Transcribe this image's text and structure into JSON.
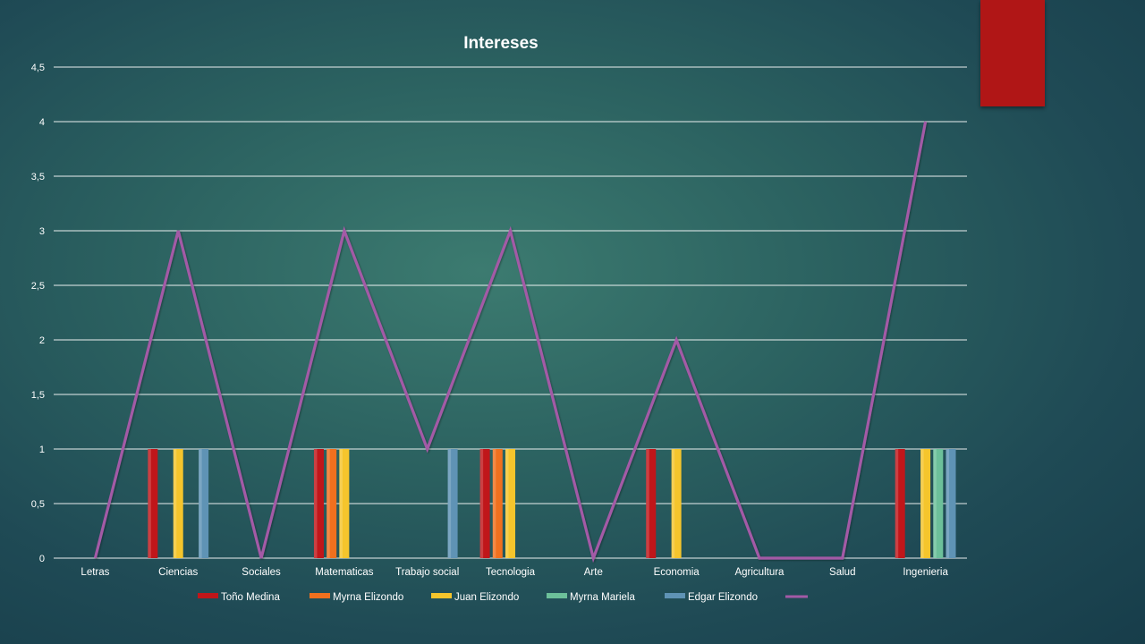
{
  "chart_data": {
    "type": "bar",
    "title": "Intereses",
    "categories": [
      "Letras",
      "Ciencias",
      "Sociales",
      "Matematicas",
      "Trabajo social",
      "Tecnologia",
      "Arte",
      "Economia",
      "Agricultura",
      "Salud",
      "Ingenieria"
    ],
    "ylim": [
      0,
      4.5
    ],
    "ytick_step": 0.5,
    "ytick_labels": [
      "0",
      "0,5",
      "1",
      "1,5",
      "2",
      "2,5",
      "3",
      "3,5",
      "4",
      "4,5"
    ],
    "grid": true,
    "legend_position": "bottom",
    "series": [
      {
        "name": "Toño Medina",
        "color": "#c0161a",
        "values": [
          0,
          1,
          0,
          1,
          0,
          1,
          0,
          1,
          0,
          0,
          1
        ]
      },
      {
        "name": "Myrna Elizondo",
        "color": "#f0701e",
        "values": [
          0,
          0,
          0,
          1,
          0,
          1,
          0,
          0,
          0,
          0,
          0
        ]
      },
      {
        "name": "Juan Elizondo",
        "color": "#f5c52c",
        "values": [
          0,
          1,
          0,
          1,
          0,
          1,
          0,
          1,
          0,
          0,
          1
        ]
      },
      {
        "name": "Myrna Mariela",
        "color": "#6cc09a",
        "values": [
          0,
          0,
          0,
          0,
          0,
          0,
          0,
          0,
          0,
          0,
          1
        ]
      },
      {
        "name": "Edgar Elizondo",
        "color": "#5f93b5",
        "values": [
          0,
          1,
          0,
          0,
          1,
          0,
          0,
          0,
          0,
          0,
          1
        ]
      }
    ],
    "line_series": {
      "name": "",
      "color": "#a35aa6",
      "values": [
        0,
        3,
        0,
        3,
        1,
        3,
        0,
        2,
        0,
        0,
        4
      ]
    }
  }
}
